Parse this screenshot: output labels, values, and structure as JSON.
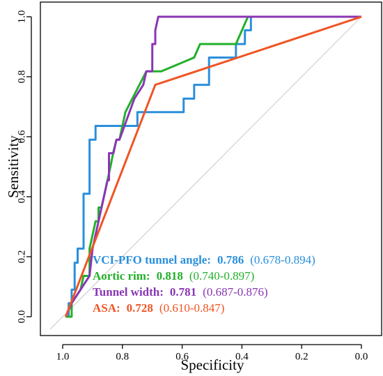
{
  "chart_data": {
    "type": "line",
    "title": "",
    "xlabel": "Specificity",
    "ylabel": "Sensitivity",
    "xlim": [
      1.0,
      0.0
    ],
    "ylim": [
      0.0,
      1.0
    ],
    "x_reversed": true,
    "grid": false,
    "x_ticks": [
      "1.0",
      "0.8",
      "0.6",
      "0.4",
      "0.2",
      "0.0"
    ],
    "y_ticks": [
      "0.0",
      "0.2",
      "0.4",
      "0.6",
      "0.8",
      "1.0"
    ],
    "reference_line": {
      "from": [
        1.0,
        0.0
      ],
      "to": [
        0.0,
        1.0
      ],
      "color": "#c8c8c8"
    },
    "legend_position": "bottom-right",
    "series": [
      {
        "name": "VCI-PFO tunnel angle:",
        "auc": "0.786",
        "ci": "(0.678-0.894)",
        "color": "#2a8fdc",
        "points": [
          [
            0.99,
            0.0
          ],
          [
            0.98,
            0.0
          ],
          [
            0.98,
            0.045
          ],
          [
            0.97,
            0.045
          ],
          [
            0.97,
            0.09
          ],
          [
            0.96,
            0.09
          ],
          [
            0.96,
            0.18
          ],
          [
            0.95,
            0.18
          ],
          [
            0.95,
            0.227
          ],
          [
            0.93,
            0.227
          ],
          [
            0.93,
            0.41
          ],
          [
            0.91,
            0.41
          ],
          [
            0.91,
            0.59
          ],
          [
            0.89,
            0.59
          ],
          [
            0.89,
            0.636
          ],
          [
            0.75,
            0.636
          ],
          [
            0.75,
            0.682
          ],
          [
            0.595,
            0.682
          ],
          [
            0.595,
            0.727
          ],
          [
            0.56,
            0.727
          ],
          [
            0.56,
            0.773
          ],
          [
            0.51,
            0.773
          ],
          [
            0.51,
            0.864
          ],
          [
            0.42,
            0.864
          ],
          [
            0.42,
            0.909
          ],
          [
            0.39,
            0.909
          ],
          [
            0.39,
            0.955
          ],
          [
            0.37,
            0.955
          ],
          [
            0.37,
            1.0
          ],
          [
            0.0,
            1.0
          ]
        ]
      },
      {
        "name": "Aortic rim:",
        "auc": "0.818",
        "ci": "(0.740-0.897)",
        "color": "#22b02a",
        "points": [
          [
            0.99,
            0.0
          ],
          [
            0.97,
            0.0
          ],
          [
            0.97,
            0.045
          ],
          [
            0.94,
            0.09
          ],
          [
            0.93,
            0.136
          ],
          [
            0.91,
            0.136
          ],
          [
            0.91,
            0.227
          ],
          [
            0.89,
            0.318
          ],
          [
            0.88,
            0.318
          ],
          [
            0.88,
            0.364
          ],
          [
            0.87,
            0.364
          ],
          [
            0.84,
            0.5
          ],
          [
            0.83,
            0.55
          ],
          [
            0.82,
            0.59
          ],
          [
            0.81,
            0.59
          ],
          [
            0.8,
            0.636
          ],
          [
            0.79,
            0.682
          ],
          [
            0.72,
            0.818
          ],
          [
            0.67,
            0.818
          ],
          [
            0.56,
            0.864
          ],
          [
            0.54,
            0.909
          ],
          [
            0.42,
            0.909
          ],
          [
            0.38,
            1.0
          ],
          [
            0.0,
            1.0
          ]
        ]
      },
      {
        "name": "Tunnel width:",
        "auc": "0.781",
        "ci": "(0.687-0.876)",
        "color": "#8a35b5",
        "points": [
          [
            0.99,
            0.0
          ],
          [
            0.97,
            0.045
          ],
          [
            0.91,
            0.136
          ],
          [
            0.9,
            0.227
          ],
          [
            0.89,
            0.273
          ],
          [
            0.88,
            0.318
          ],
          [
            0.87,
            0.364
          ],
          [
            0.86,
            0.409
          ],
          [
            0.85,
            0.455
          ],
          [
            0.845,
            0.455
          ],
          [
            0.845,
            0.545
          ],
          [
            0.83,
            0.545
          ],
          [
            0.82,
            0.59
          ],
          [
            0.81,
            0.59
          ],
          [
            0.76,
            0.727
          ],
          [
            0.73,
            0.773
          ],
          [
            0.72,
            0.818
          ],
          [
            0.7,
            0.818
          ],
          [
            0.7,
            0.909
          ],
          [
            0.69,
            0.909
          ],
          [
            0.69,
            0.955
          ],
          [
            0.68,
            1.0
          ],
          [
            0.38,
            1.0
          ],
          [
            0.0,
            1.0
          ]
        ]
      },
      {
        "name": "ASA:",
        "auc": "0.728",
        "ci": "(0.610-0.847)",
        "color": "#ef5524",
        "points": [
          [
            0.99,
            0.0
          ],
          [
            0.69,
            0.773
          ],
          [
            0.0,
            1.0
          ]
        ]
      }
    ]
  },
  "colors": {
    "background": "#ffffff",
    "frame": "#000000",
    "reference": "#c8c8c8"
  }
}
